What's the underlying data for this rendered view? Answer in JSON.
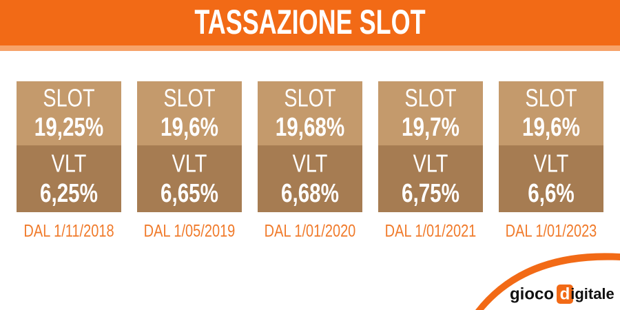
{
  "header": {
    "title": "TASSAZIONE SLOT"
  },
  "cards": [
    {
      "slot_label": "SLOT",
      "slot_value": "19,25%",
      "vlt_label": "VLT",
      "vlt_value": "6,25%",
      "date": "DAL 1/11/2018"
    },
    {
      "slot_label": "SLOT",
      "slot_value": "19,6%",
      "vlt_label": "VLT",
      "vlt_value": "6,65%",
      "date": "DAL 1/05/2019"
    },
    {
      "slot_label": "SLOT",
      "slot_value": "19,68%",
      "vlt_label": "VLT",
      "vlt_value": "6,68%",
      "date": "DAL 1/01/2020"
    },
    {
      "slot_label": "SLOT",
      "slot_value": "19,7%",
      "vlt_label": "VLT",
      "vlt_value": "6,75%",
      "date": "DAL 1/01/2021"
    },
    {
      "slot_label": "SLOT",
      "slot_value": "19,6%",
      "vlt_label": "VLT",
      "vlt_value": "6,6%",
      "date": "DAL 1/01/2023"
    }
  ],
  "logo": {
    "part1": "gioco",
    "part2": "d",
    "part3": "igitale"
  }
}
